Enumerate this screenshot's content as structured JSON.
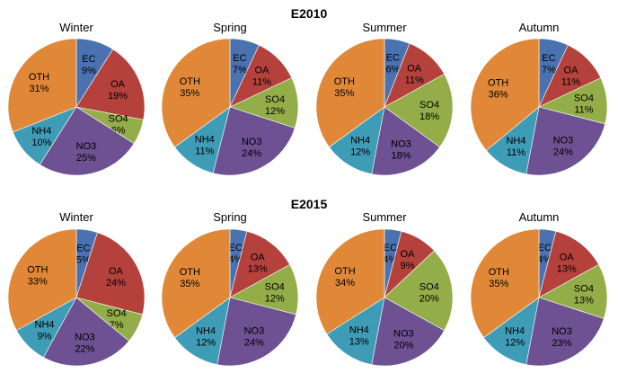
{
  "colors": {
    "EC": "#4a72b0",
    "OA": "#b5413d",
    "SO4": "#93ad48",
    "NO3": "#6d5192",
    "NH4": "#3f9cb6",
    "OTH": "#e08837"
  },
  "chart_data": [
    {
      "type": "pie",
      "group": "E2010",
      "title": "Winter",
      "slices": [
        {
          "label": "EC",
          "value": 9,
          "text": "9%"
        },
        {
          "label": "OA",
          "value": 19,
          "text": "19%"
        },
        {
          "label": "SO4",
          "value": 6,
          "text": "6%"
        },
        {
          "label": "NO3",
          "value": 25,
          "text": "25%"
        },
        {
          "label": "NH4",
          "value": 10,
          "text": "10%"
        },
        {
          "label": "OTH",
          "value": 31,
          "text": "31%"
        }
      ]
    },
    {
      "type": "pie",
      "group": "E2010",
      "title": "Spring",
      "slices": [
        {
          "label": "EC",
          "value": 7,
          "text": "7%"
        },
        {
          "label": "OA",
          "value": 11,
          "text": "11%"
        },
        {
          "label": "SO4",
          "value": 12,
          "text": "12%"
        },
        {
          "label": "NO3",
          "value": 24,
          "text": "24%"
        },
        {
          "label": "NH4",
          "value": 11,
          "text": "11%"
        },
        {
          "label": "OTH",
          "value": 35,
          "text": "35%"
        }
      ]
    },
    {
      "type": "pie",
      "group": "E2010",
      "title": "Summer",
      "slices": [
        {
          "label": "EC",
          "value": 6,
          "text": "6%"
        },
        {
          "label": "OA",
          "value": 11,
          "text": "11%"
        },
        {
          "label": "SO4",
          "value": 18,
          "text": "18%"
        },
        {
          "label": "NO3",
          "value": 18,
          "text": "18%"
        },
        {
          "label": "NH4",
          "value": 12,
          "text": "12%"
        },
        {
          "label": "OTH",
          "value": 35,
          "text": "35%"
        }
      ]
    },
    {
      "type": "pie",
      "group": "E2010",
      "title": "Autumn",
      "slices": [
        {
          "label": "EC",
          "value": 7,
          "text": "7%"
        },
        {
          "label": "OA",
          "value": 11,
          "text": "11%"
        },
        {
          "label": "SO4",
          "value": 11,
          "text": "11%"
        },
        {
          "label": "NO3",
          "value": 24,
          "text": "24%"
        },
        {
          "label": "NH4",
          "value": 11,
          "text": "11%"
        },
        {
          "label": "OTH",
          "value": 36,
          "text": "36%"
        }
      ]
    },
    {
      "type": "pie",
      "group": "E2015",
      "title": "Winter",
      "slices": [
        {
          "label": "EC",
          "value": 5,
          "text": "5%"
        },
        {
          "label": "OA",
          "value": 24,
          "text": "24%"
        },
        {
          "label": "SO4",
          "value": 7,
          "text": "7%"
        },
        {
          "label": "NO3",
          "value": 22,
          "text": "22%"
        },
        {
          "label": "NH4",
          "value": 9,
          "text": "9%"
        },
        {
          "label": "OTH",
          "value": 33,
          "text": "33%"
        }
      ]
    },
    {
      "type": "pie",
      "group": "E2015",
      "title": "Spring",
      "slices": [
        {
          "label": "EC",
          "value": 4,
          "text": "4%"
        },
        {
          "label": "OA",
          "value": 13,
          "text": "13%"
        },
        {
          "label": "SO4",
          "value": 12,
          "text": "12%"
        },
        {
          "label": "NO3",
          "value": 24,
          "text": "24%"
        },
        {
          "label": "NH4",
          "value": 12,
          "text": "12%"
        },
        {
          "label": "OTH",
          "value": 35,
          "text": "35%"
        }
      ]
    },
    {
      "type": "pie",
      "group": "E2015",
      "title": "Summer",
      "slices": [
        {
          "label": "EC",
          "value": 4,
          "text": "4%"
        },
        {
          "label": "OA",
          "value": 9,
          "text": "9%"
        },
        {
          "label": "SO4",
          "value": 20,
          "text": "20%"
        },
        {
          "label": "NO3",
          "value": 20,
          "text": "20%"
        },
        {
          "label": "NH4",
          "value": 13,
          "text": "13%"
        },
        {
          "label": "OTH",
          "value": 34,
          "text": "34%"
        }
      ]
    },
    {
      "type": "pie",
      "group": "E2015",
      "title": "Autumn",
      "slices": [
        {
          "label": "EC",
          "value": 4,
          "text": "4%"
        },
        {
          "label": "OA",
          "value": 13,
          "text": "13%"
        },
        {
          "label": "SO4",
          "value": 13,
          "text": "13%"
        },
        {
          "label": "NO3",
          "value": 23,
          "text": "23%"
        },
        {
          "label": "NH4",
          "value": 12,
          "text": "12%"
        },
        {
          "label": "OTH",
          "value": 35,
          "text": "35%"
        }
      ]
    }
  ]
}
